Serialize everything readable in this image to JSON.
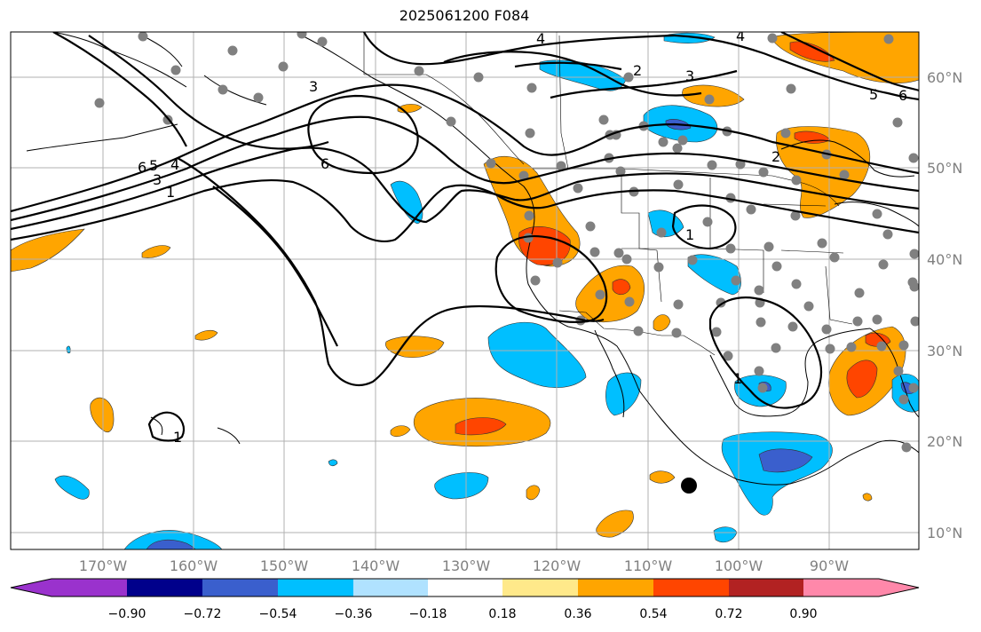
{
  "title": "2025061200 F084",
  "lon_labels": [
    "170°W",
    "160°W",
    "150°W",
    "140°W",
    "130°W",
    "120°W",
    "110°W",
    "100°W",
    "90°W"
  ],
  "lat_labels": [
    "60°N",
    "50°N",
    "40°N",
    "30°N",
    "20°N",
    "10°N"
  ],
  "colorbar": {
    "ticks": [
      "−0.90",
      "−0.72",
      "−0.54",
      "−0.36",
      "−0.18",
      "0.18",
      "0.36",
      "0.54",
      "0.72",
      "0.90"
    ],
    "colors": [
      "#9a32cd",
      "#00008b",
      "#3a5fcd",
      "#00bfff",
      "#b0e2ff",
      "#ffffff",
      "#ffe98a",
      "#ffa500",
      "#ff4500",
      "#b22222",
      "#ff88aa"
    ]
  },
  "contour_labels": [
    "4",
    "4",
    "2",
    "3",
    "3",
    "6",
    "5",
    "4",
    "3",
    "1",
    "6",
    "5",
    "6",
    "2",
    "1",
    "1",
    "1"
  ],
  "fill_colors": {
    "neg_light": "#00bfff",
    "neg_mid": "#3a5fcd",
    "pos_light": "#ffa500",
    "pos_mid": "#ff4500",
    "pos_dark": "#b22222"
  },
  "station_color": "#808080",
  "marker_color": "#000000"
}
